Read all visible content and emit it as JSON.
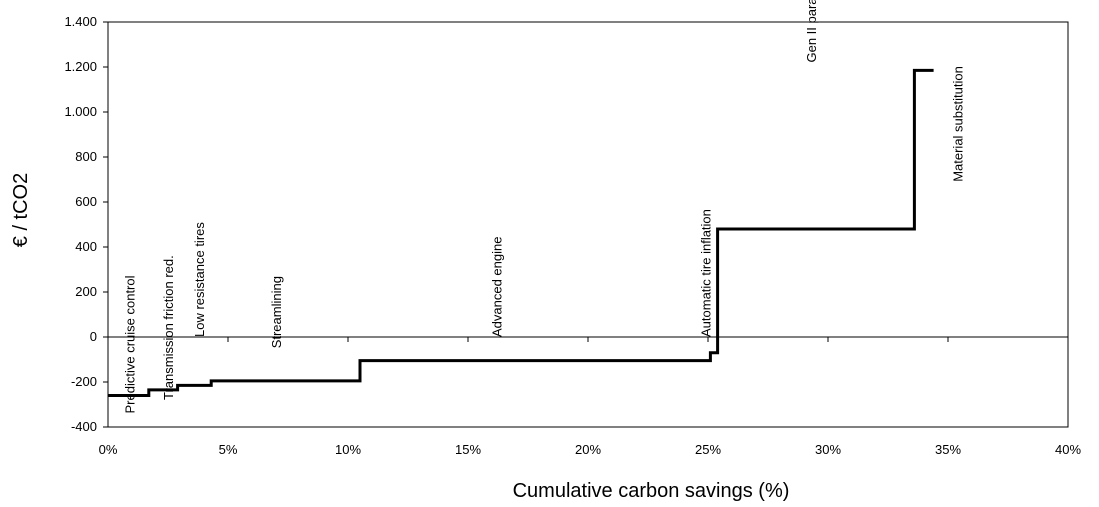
{
  "chart_data": {
    "type": "line",
    "subtype": "step",
    "xlabel": "Cumulative carbon savings (%)",
    "ylabel": "€ / tCO2",
    "xlim": [
      0,
      40
    ],
    "ylim": [
      -400,
      1400
    ],
    "x_ticks": [
      0,
      5,
      10,
      15,
      20,
      25,
      30,
      35,
      40
    ],
    "x_tick_labels": [
      "0%",
      "5%",
      "10%",
      "15%",
      "20%",
      "25%",
      "30%",
      "35%",
      "40%"
    ],
    "y_ticks": [
      -400,
      -200,
      0,
      200,
      400,
      600,
      800,
      1000,
      1200,
      1400
    ],
    "y_tick_labels": [
      "-400",
      "-200",
      "0",
      "200",
      "400",
      "600",
      "800",
      "1.000",
      "1.200",
      "1.400"
    ],
    "series": [
      {
        "color": "#000000",
        "points": [
          [
            0,
            -260
          ],
          [
            1.7,
            -260
          ],
          [
            1.7,
            -235
          ],
          [
            2.9,
            -235
          ],
          [
            2.9,
            -215
          ],
          [
            4.3,
            -215
          ],
          [
            4.3,
            -195
          ],
          [
            10.5,
            -195
          ],
          [
            10.5,
            -105
          ],
          [
            25.1,
            -105
          ],
          [
            25.1,
            -70
          ],
          [
            25.4,
            -70
          ],
          [
            25.4,
            480
          ],
          [
            33.6,
            480
          ],
          [
            33.6,
            1185
          ],
          [
            34.4,
            1185
          ]
        ]
      }
    ],
    "annotations": [
      {
        "text": "Predictive cruise control",
        "x": 1.1,
        "y_anchor": -340
      },
      {
        "text": "Transmission friction red.",
        "x": 2.7,
        "y_anchor": -280
      },
      {
        "text": "Low resistance tires",
        "x": 4.0,
        "y_anchor": 0
      },
      {
        "text": "Streamlining",
        "x": 7.2,
        "y_anchor": -50
      },
      {
        "text": "Advanced engine",
        "x": 16.4,
        "y_anchor": 0
      },
      {
        "text": "Automatic tire inflation",
        "x": 25.1,
        "y_anchor": 0
      },
      {
        "text": "Gen II parallel hybrid",
        "x": 29.5,
        "y_anchor": 1220
      },
      {
        "text": "Material substitution",
        "x": 35.6,
        "y_anchor": 690
      }
    ],
    "grid": false,
    "zero_line": true
  }
}
